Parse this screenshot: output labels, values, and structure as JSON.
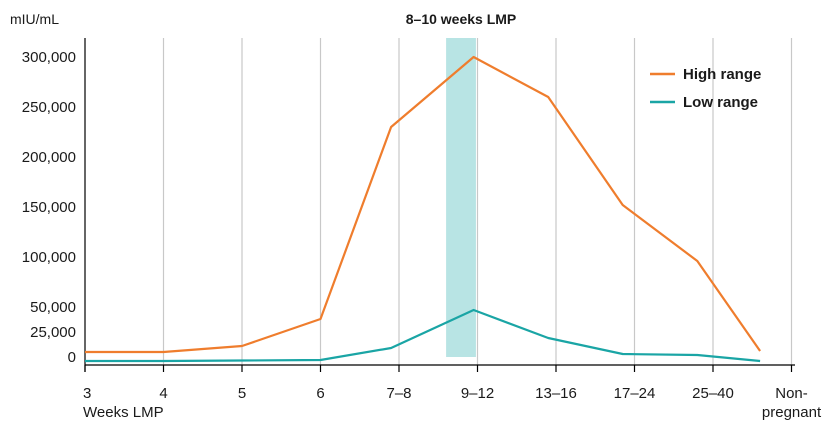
{
  "chart_data": {
    "type": "line",
    "y_unit_label": "mIU/mL",
    "highlight_label": "8–10 weeks LMP",
    "highlight_range": [
      "7–8",
      "9–12"
    ],
    "colors": {
      "high": "#ef7d2d",
      "low": "#1aa5a5",
      "highlight": "#b8e4e4",
      "grid": "#c8c8c8",
      "axis": "#000000"
    },
    "x_ticks": [
      {
        "top": "3",
        "bottom": "Weeks LMP"
      },
      {
        "top": "4",
        "bottom": ""
      },
      {
        "top": "5",
        "bottom": ""
      },
      {
        "top": "6",
        "bottom": ""
      },
      {
        "top": "7–8",
        "bottom": ""
      },
      {
        "top": "9–12",
        "bottom": ""
      },
      {
        "top": "13–16",
        "bottom": ""
      },
      {
        "top": "17–24",
        "bottom": ""
      },
      {
        "top": "25–40",
        "bottom": ""
      },
      {
        "top": "Non-",
        "bottom": "pregnant"
      }
    ],
    "y_ticks": [
      {
        "label": "300,000",
        "value": 300000
      },
      {
        "label": "250,000",
        "value": 250000
      },
      {
        "label": "200,000",
        "value": 200000
      },
      {
        "label": "150,000",
        "value": 150000
      },
      {
        "label": "100,000",
        "value": 100000
      },
      {
        "label": "50,000",
        "value": 50000
      },
      {
        "label": "25,000",
        "value": 25000
      },
      {
        "label": "0",
        "value": 0
      }
    ],
    "ylim": [
      0,
      300000
    ],
    "series": [
      {
        "key": "high",
        "name": "High range",
        "points": [
          {
            "x": 0.0,
            "y": 5000
          },
          {
            "x": 1.0,
            "y": 5000
          },
          {
            "x": 2.0,
            "y": 11000
          },
          {
            "x": 3.0,
            "y": 38000
          },
          {
            "x": 3.9,
            "y": 230000
          },
          {
            "x": 4.95,
            "y": 300000
          },
          {
            "x": 5.9,
            "y": 260000
          },
          {
            "x": 6.85,
            "y": 152000
          },
          {
            "x": 7.8,
            "y": 96000
          },
          {
            "x": 8.6,
            "y": 6000
          }
        ]
      },
      {
        "key": "low",
        "name": "Low range",
        "points": [
          {
            "x": 0.0,
            "y": -4000
          },
          {
            "x": 1.0,
            "y": -4000
          },
          {
            "x": 2.0,
            "y": -3500
          },
          {
            "x": 3.0,
            "y": -3000
          },
          {
            "x": 3.9,
            "y": 9000
          },
          {
            "x": 4.95,
            "y": 47000
          },
          {
            "x": 5.9,
            "y": 19000
          },
          {
            "x": 6.85,
            "y": 3000
          },
          {
            "x": 7.8,
            "y": 2000
          },
          {
            "x": 8.6,
            "y": -4000
          }
        ]
      }
    ],
    "legend_position": "top-right",
    "grid": "vertical"
  }
}
